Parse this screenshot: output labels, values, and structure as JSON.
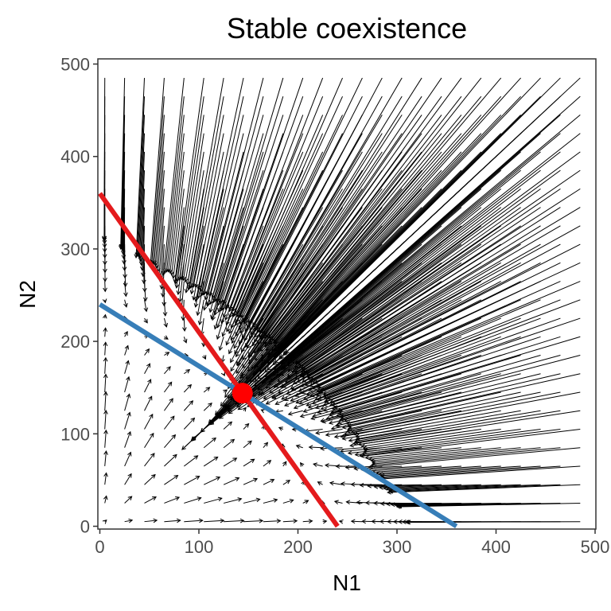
{
  "chart_data": {
    "type": "scatter",
    "title": "Stable coexistence",
    "xlabel": "N1",
    "ylabel": "N2",
    "xlim": [
      0,
      500
    ],
    "ylim": [
      0,
      500
    ],
    "xticks": [
      "0",
      "100",
      "200",
      "300",
      "400",
      "500"
    ],
    "yticks": [
      "0",
      "100",
      "200",
      "300",
      "400",
      "500"
    ],
    "grid": false,
    "vector_field": {
      "grid_x": [
        5,
        25,
        45,
        65,
        85,
        105,
        125,
        145,
        165,
        185,
        205,
        225,
        245,
        265,
        285,
        305,
        325,
        345,
        365,
        385,
        405,
        425,
        445,
        465,
        485
      ],
      "grid_y": [
        5,
        25,
        45,
        65,
        85,
        105,
        125,
        145,
        165,
        185,
        205,
        225,
        245,
        265,
        285,
        305,
        325,
        345,
        365,
        385,
        405,
        425,
        445,
        465,
        485
      ],
      "model": "competitive Lotka-Volterra",
      "N1_isocline": {
        "N1_intercept": 240,
        "N2_intercept": 360
      },
      "N2_isocline": {
        "N1_intercept": 360,
        "N2_intercept": 240
      }
    },
    "series": [
      {
        "type": "line",
        "color": "#E41A1C",
        "x": [
          0,
          240
        ],
        "y": [
          360,
          0
        ]
      },
      {
        "type": "line",
        "color": "#377EB8",
        "x": [
          0,
          360
        ],
        "y": [
          240,
          0
        ]
      },
      {
        "type": "point",
        "color": "#FF0000",
        "x": [
          144
        ],
        "y": [
          144
        ]
      }
    ]
  }
}
